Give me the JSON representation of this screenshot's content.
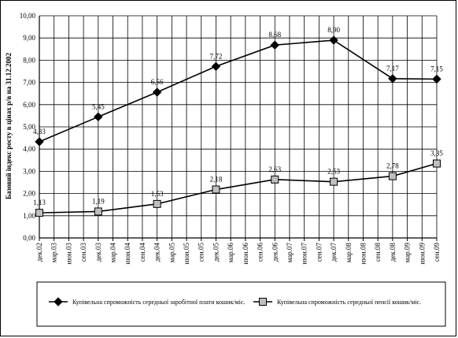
{
  "chart_data": {
    "type": "line",
    "ylabel": "Базовий індекс росту в цінах р/в на 31.12.2002",
    "ylim": [
      0,
      10
    ],
    "yticks": [
      "0,00",
      "1,00",
      "2,00",
      "3,00",
      "4,00",
      "5,00",
      "6,00",
      "7,00",
      "8,00",
      "9,00",
      "10,00"
    ],
    "categories": [
      "дек.02",
      "мар.03",
      "июн.03",
      "сен.03",
      "дек.03",
      "мар.04",
      "июн.04",
      "сен.04",
      "дек.04",
      "мар.05",
      "июн.05",
      "сен.05",
      "дек.05",
      "мар.06",
      "июн.06",
      "сен.06",
      "дек.06",
      "мар.07",
      "июн.07",
      "сен.07",
      "дек.07",
      "мар.08",
      "июн.08",
      "сен.08",
      "дек.08",
      "мар.09",
      "июн.09",
      "сен.09"
    ],
    "grid": true,
    "legend_position": "bottom",
    "series": [
      {
        "name": "Купівельна спроможність середньої заробітної плати кошик/міс.",
        "marker": "diamond",
        "color": "#000000",
        "points": [
          {
            "index": 0,
            "value": 4.33,
            "label": "4,33"
          },
          {
            "index": 4,
            "value": 5.45,
            "label": "5,45"
          },
          {
            "index": 8,
            "value": 6.56,
            "label": "6,56"
          },
          {
            "index": 12,
            "value": 7.72,
            "label": "7,72"
          },
          {
            "index": 16,
            "value": 8.68,
            "label": "8,68"
          },
          {
            "index": 20,
            "value": 8.9,
            "label": "8,90"
          },
          {
            "index": 24,
            "value": 7.17,
            "label": "7,17"
          },
          {
            "index": 27,
            "value": 7.15,
            "label": "7,15"
          }
        ]
      },
      {
        "name": "Купівельна спроможність середньої пенсії кошик/міс.",
        "marker": "square",
        "color": "#000000",
        "points": [
          {
            "index": 0,
            "value": 1.13,
            "label": "1,13"
          },
          {
            "index": 4,
            "value": 1.19,
            "label": "1,19"
          },
          {
            "index": 8,
            "value": 1.53,
            "label": "1,53"
          },
          {
            "index": 12,
            "value": 2.18,
            "label": "2,18"
          },
          {
            "index": 16,
            "value": 2.63,
            "label": "2,63"
          },
          {
            "index": 20,
            "value": 2.53,
            "label": "2,53"
          },
          {
            "index": 24,
            "value": 2.78,
            "label": "2,78"
          },
          {
            "index": 27,
            "value": 3.35,
            "label": "3,35"
          }
        ]
      }
    ]
  }
}
